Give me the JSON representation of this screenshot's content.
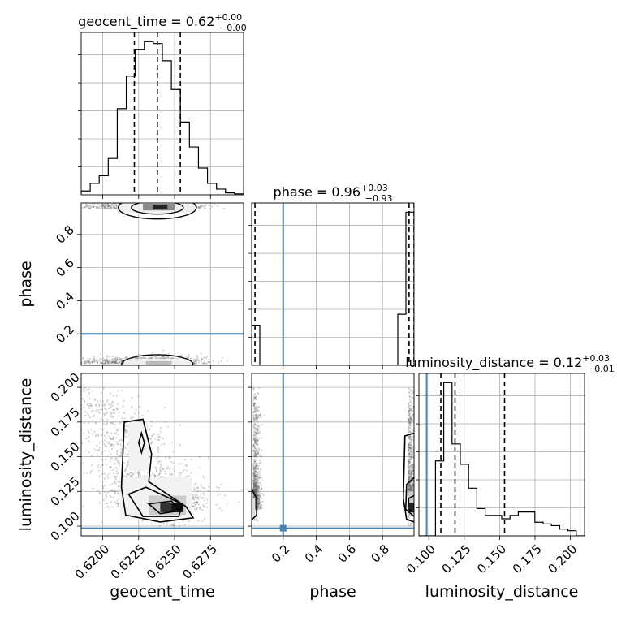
{
  "chart_data": {
    "type": "corner",
    "parameters": [
      {
        "name": "geocent_time",
        "range": [
          0.6185,
          0.6298
        ],
        "truth": null,
        "ticks": [
          0.62,
          0.6225,
          0.625,
          0.6275
        ],
        "tick_labels": [
          "0.6200",
          "0.6225",
          "0.6250",
          "0.6275"
        ],
        "quantiles": [
          0.6222,
          0.6238,
          0.6254
        ],
        "title": {
          "main": "geocent_time = 0.62",
          "sup": "+0.00",
          "sub": "−0.00"
        }
      },
      {
        "name": "phase",
        "range": [
          0.01,
          0.99
        ],
        "truth": 0.2,
        "ticks": [
          0.2,
          0.4,
          0.6,
          0.8
        ],
        "tick_labels": [
          "0.2",
          "0.4",
          "0.6",
          "0.8"
        ],
        "quantiles": [
          0.03,
          0.96,
          0.99
        ],
        "title": {
          "main": "phase = 0.96",
          "sup": "+0.03",
          "sub": "−0.93"
        }
      },
      {
        "name": "luminosity_distance",
        "range": [
          0.093,
          0.21
        ],
        "truth": 0.0985,
        "ticks": [
          0.1,
          0.125,
          0.15,
          0.175,
          0.2
        ],
        "tick_labels": [
          "0.100",
          "0.125",
          "0.150",
          "0.175",
          "0.200"
        ],
        "quantiles": [
          0.1085,
          0.1185,
          0.1535
        ],
        "title": {
          "main": "luminosity_distance = 0.12",
          "sup": "+0.03",
          "sub": "−0.01"
        }
      }
    ],
    "histograms": {
      "geocent_time": [
        2,
        6,
        10,
        19,
        45,
        62,
        76,
        80,
        79,
        70,
        55,
        38,
        25,
        14,
        6,
        3,
        1,
        0.5
      ],
      "phase": [
        22,
        0,
        0,
        0,
        0,
        0,
        0,
        0,
        0,
        0,
        0,
        0,
        0,
        0,
        0,
        0,
        0,
        0,
        28,
        84
      ],
      "luminosity_distance": [
        0,
        0,
        44,
        90,
        54,
        42,
        28,
        16,
        12,
        12,
        10,
        12,
        14,
        14,
        8,
        7,
        6,
        4,
        3,
        0
      ]
    },
    "axis_labels": {
      "x": [
        "geocent_time",
        "phase",
        "luminosity_distance"
      ],
      "y": [
        "",
        "phase",
        "luminosity_distance"
      ]
    },
    "grid": true,
    "colors": {
      "truth": "#4682b4",
      "hist": "#000000",
      "scatter": "#555555"
    }
  }
}
